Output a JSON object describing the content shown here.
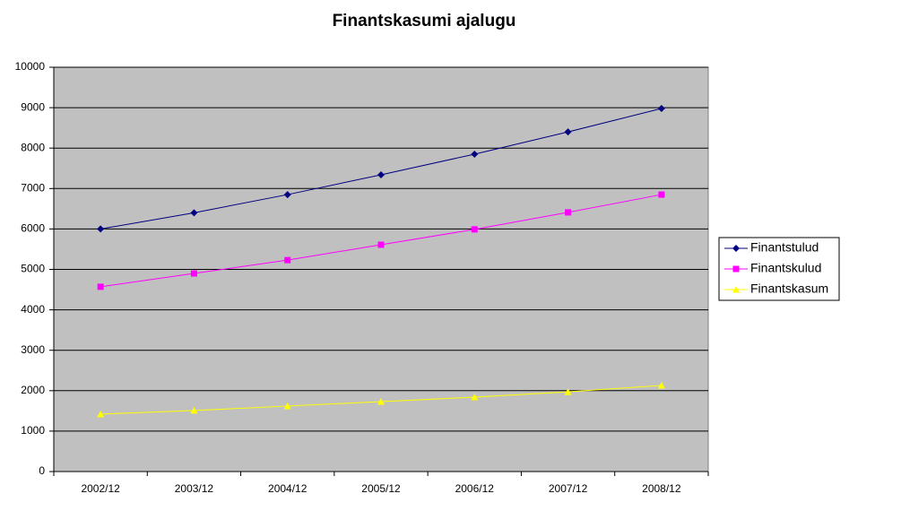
{
  "chart_data": {
    "type": "line",
    "title": "Finantskasumi ajalugu",
    "categories": [
      "2002/12",
      "2003/12",
      "2004/12",
      "2005/12",
      "2006/12",
      "2007/12",
      "2008/12"
    ],
    "series": [
      {
        "name": "Finantstulud",
        "color": "#000080",
        "marker": "diamond",
        "values": [
          6000,
          6400,
          6850,
          7340,
          7850,
          8400,
          8980
        ]
      },
      {
        "name": "Finantskulud",
        "color": "#ff00ff",
        "marker": "square",
        "values": [
          4570,
          4900,
          5230,
          5610,
          5990,
          6410,
          6850
        ]
      },
      {
        "name": "Finantskasum",
        "color": "#ffff00",
        "marker": "triangle",
        "values": [
          1420,
          1510,
          1620,
          1730,
          1840,
          1970,
          2130
        ]
      }
    ],
    "ylim": [
      0,
      10000
    ],
    "yticks": [
      0,
      1000,
      2000,
      3000,
      4000,
      5000,
      6000,
      7000,
      8000,
      9000,
      10000
    ],
    "grid": true,
    "legend": "right",
    "plot_background": "#c0c0c0"
  }
}
